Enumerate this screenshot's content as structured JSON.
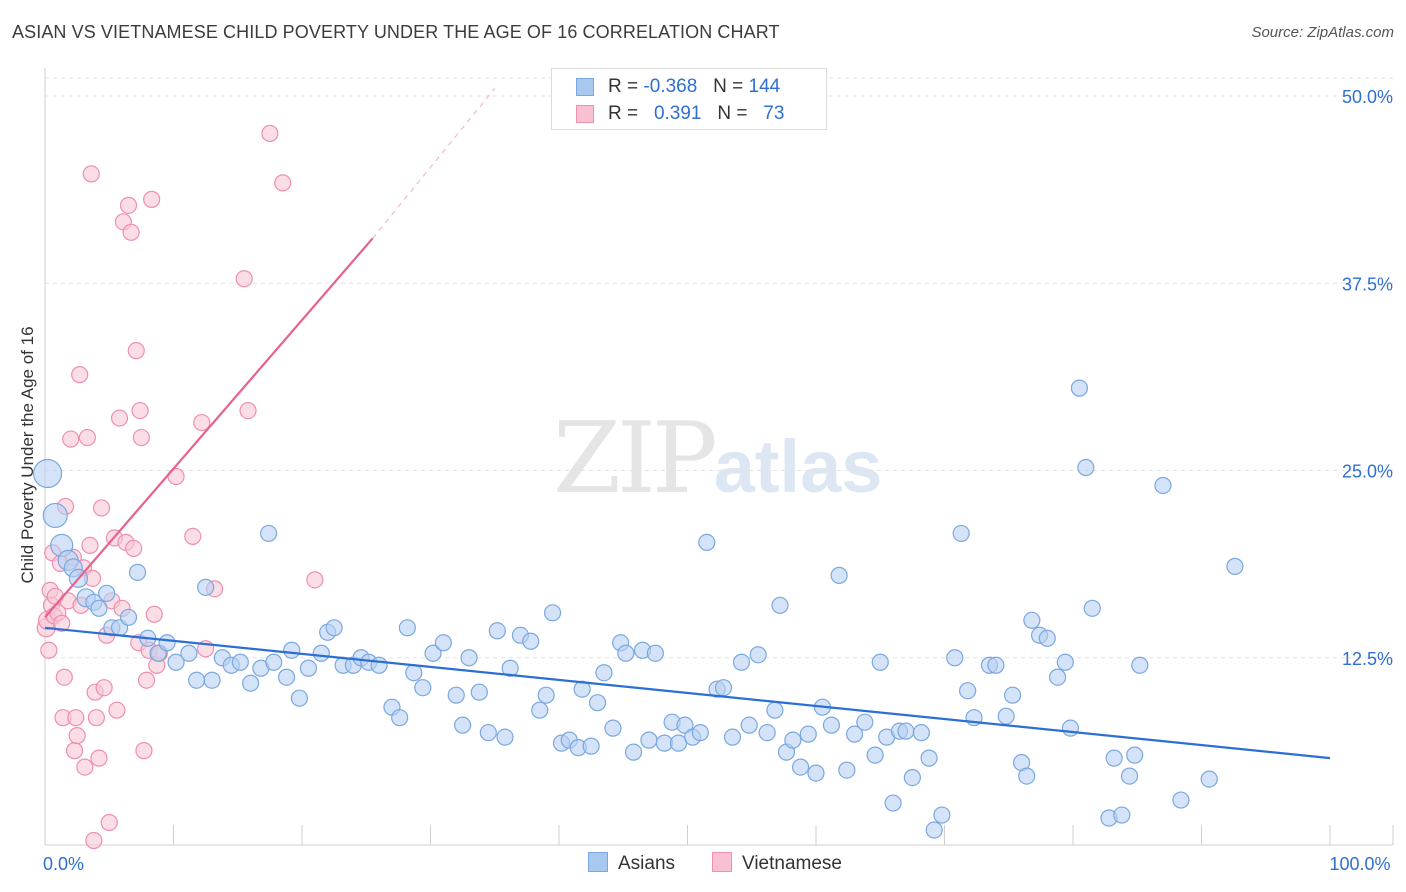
{
  "title": "ASIAN VS VIETNAMESE CHILD POVERTY UNDER THE AGE OF 16 CORRELATION CHART",
  "source": "Source: ZipAtlas.com",
  "watermark": {
    "zip": "ZIP",
    "atlas": "atlas"
  },
  "legend": {
    "rows": [
      {
        "r_label": "R =",
        "r_value": "-0.368",
        "n_label": "N =",
        "n_value": "144",
        "color": "#a8c8f0",
        "border": "#7aa8e0"
      },
      {
        "r_label": "R =",
        "r_value": "0.391",
        "n_label": "N =",
        "n_value": "73",
        "color": "#f8c0d0",
        "border": "#f090b0"
      }
    ]
  },
  "colors": {
    "asian_fill": "#b7d0f2",
    "asian_stroke": "#7aa8e0",
    "asian_line": "#2b6fd4",
    "viet_fill": "#f8c6d6",
    "viet_stroke": "#ee8fb0",
    "viet_line": "#e8608f",
    "axis_label": "#2f6fd1",
    "grid": "#e3e3e3"
  },
  "chart_data": {
    "type": "scatter",
    "xlabel": "",
    "ylabel": "Child Poverty Under the Age of 16",
    "xlim": [
      0,
      100
    ],
    "ylim": [
      0,
      50
    ],
    "x_tick_labels": {
      "0": "0.0%",
      "100": "100.0%"
    },
    "y_tick_labels": {
      "12.5": "12.5%",
      "25": "25.0%",
      "37.5": "37.5%",
      "50": "50.0%"
    },
    "legend_position": "bottom-center",
    "series": [
      {
        "name": "Asians",
        "trend": {
          "x": [
            0,
            100
          ],
          "y": [
            14.5,
            5.8
          ],
          "dashed_extension": false
        },
        "points": [
          [
            0.2,
            24.8,
            14
          ],
          [
            0.8,
            22.0,
            12
          ],
          [
            1.3,
            20.0,
            11
          ],
          [
            1.8,
            19.0,
            10
          ],
          [
            2.2,
            18.5,
            9
          ],
          [
            2.6,
            17.8,
            9
          ],
          [
            3.2,
            16.5,
            9
          ],
          [
            3.8,
            16.2,
            8
          ],
          [
            4.2,
            15.8,
            8
          ],
          [
            4.8,
            16.8,
            8
          ],
          [
            5.2,
            14.5,
            8
          ],
          [
            5.8,
            14.5,
            8
          ],
          [
            6.5,
            15.2,
            8
          ],
          [
            7.2,
            18.2,
            8
          ],
          [
            8.0,
            13.8,
            8
          ],
          [
            8.8,
            12.8,
            8
          ],
          [
            9.5,
            13.5,
            8
          ],
          [
            10.2,
            12.2,
            8
          ],
          [
            11.2,
            12.8,
            8
          ],
          [
            11.8,
            11.0,
            8
          ],
          [
            12.5,
            17.2,
            8
          ],
          [
            13.0,
            11.0,
            8
          ],
          [
            13.8,
            12.5,
            8
          ],
          [
            14.5,
            12.0,
            8
          ],
          [
            15.2,
            12.2,
            8
          ],
          [
            16.0,
            10.8,
            8
          ],
          [
            16.8,
            11.8,
            8
          ],
          [
            17.4,
            20.8,
            8
          ],
          [
            17.8,
            12.2,
            8
          ],
          [
            18.8,
            11.2,
            8
          ],
          [
            19.2,
            13.0,
            8
          ],
          [
            19.8,
            9.8,
            8
          ],
          [
            20.5,
            11.8,
            8
          ],
          [
            21.5,
            12.8,
            8
          ],
          [
            22.0,
            14.2,
            8
          ],
          [
            22.5,
            14.5,
            8
          ],
          [
            23.2,
            12.0,
            8
          ],
          [
            24.0,
            12.0,
            8
          ],
          [
            24.6,
            12.5,
            8
          ],
          [
            25.2,
            12.2,
            8
          ],
          [
            26.0,
            12.0,
            8
          ],
          [
            27.0,
            9.2,
            8
          ],
          [
            27.6,
            8.5,
            8
          ],
          [
            28.2,
            14.5,
            8
          ],
          [
            28.7,
            11.5,
            8
          ],
          [
            29.4,
            10.5,
            8
          ],
          [
            30.2,
            12.8,
            8
          ],
          [
            31.0,
            13.5,
            8
          ],
          [
            32.0,
            10.0,
            8
          ],
          [
            32.5,
            8.0,
            8
          ],
          [
            33.0,
            12.5,
            8
          ],
          [
            33.8,
            10.2,
            8
          ],
          [
            34.5,
            7.5,
            8
          ],
          [
            35.2,
            14.3,
            8
          ],
          [
            35.8,
            7.2,
            8
          ],
          [
            36.2,
            11.8,
            8
          ],
          [
            37.0,
            14.0,
            8
          ],
          [
            37.8,
            13.6,
            8
          ],
          [
            38.5,
            9.0,
            8
          ],
          [
            39.0,
            10.0,
            8
          ],
          [
            39.5,
            15.5,
            8
          ],
          [
            40.2,
            6.8,
            8
          ],
          [
            40.8,
            7.0,
            8
          ],
          [
            41.5,
            6.5,
            8
          ],
          [
            41.8,
            10.4,
            8
          ],
          [
            42.5,
            6.6,
            8
          ],
          [
            43.0,
            9.5,
            8
          ],
          [
            43.5,
            11.5,
            8
          ],
          [
            44.2,
            7.8,
            8
          ],
          [
            44.8,
            13.5,
            8
          ],
          [
            45.2,
            12.8,
            8
          ],
          [
            45.8,
            6.2,
            8
          ],
          [
            46.5,
            13.0,
            8
          ],
          [
            47.0,
            7.0,
            8
          ],
          [
            47.5,
            12.8,
            8
          ],
          [
            48.2,
            6.8,
            8
          ],
          [
            48.8,
            8.2,
            8
          ],
          [
            49.3,
            6.8,
            8
          ],
          [
            49.8,
            8.0,
            8
          ],
          [
            50.4,
            7.2,
            8
          ],
          [
            51.0,
            7.5,
            8
          ],
          [
            51.5,
            20.2,
            8
          ],
          [
            52.3,
            10.4,
            8
          ],
          [
            52.8,
            10.5,
            8
          ],
          [
            53.5,
            7.2,
            8
          ],
          [
            54.2,
            12.2,
            8
          ],
          [
            54.8,
            8.0,
            8
          ],
          [
            55.5,
            12.7,
            8
          ],
          [
            56.2,
            7.5,
            8
          ],
          [
            56.8,
            9.0,
            8
          ],
          [
            57.2,
            16.0,
            8
          ],
          [
            57.7,
            6.2,
            8
          ],
          [
            58.2,
            7.0,
            8
          ],
          [
            58.8,
            5.2,
            8
          ],
          [
            59.4,
            7.4,
            8
          ],
          [
            60.0,
            4.8,
            8
          ],
          [
            60.5,
            9.2,
            8
          ],
          [
            61.2,
            8.0,
            8
          ],
          [
            61.8,
            18.0,
            8
          ],
          [
            62.4,
            5.0,
            8
          ],
          [
            63.0,
            7.4,
            8
          ],
          [
            63.8,
            8.2,
            8
          ],
          [
            64.6,
            6.0,
            8
          ],
          [
            65.0,
            12.2,
            8
          ],
          [
            65.5,
            7.2,
            8
          ],
          [
            66.0,
            2.8,
            8
          ],
          [
            66.5,
            7.6,
            8
          ],
          [
            67.0,
            7.6,
            8
          ],
          [
            67.5,
            4.5,
            8
          ],
          [
            68.2,
            7.5,
            8
          ],
          [
            68.8,
            5.8,
            8
          ],
          [
            69.2,
            1.0,
            8
          ],
          [
            69.8,
            2.0,
            8
          ],
          [
            70.8,
            12.5,
            8
          ],
          [
            71.3,
            20.8,
            8
          ],
          [
            71.8,
            10.3,
            8
          ],
          [
            72.3,
            8.5,
            8
          ],
          [
            73.5,
            12.0,
            8
          ],
          [
            74.0,
            12.0,
            8
          ],
          [
            74.8,
            8.6,
            8
          ],
          [
            75.3,
            10.0,
            8
          ],
          [
            76.0,
            5.5,
            8
          ],
          [
            76.4,
            4.6,
            8
          ],
          [
            76.8,
            15.0,
            8
          ],
          [
            77.4,
            14.0,
            8
          ],
          [
            78.0,
            13.8,
            8
          ],
          [
            78.8,
            11.2,
            8
          ],
          [
            79.4,
            12.2,
            8
          ],
          [
            79.8,
            7.8,
            8
          ],
          [
            80.5,
            30.5,
            8
          ],
          [
            81.0,
            25.2,
            8
          ],
          [
            81.5,
            15.8,
            8
          ],
          [
            82.8,
            1.8,
            8
          ],
          [
            83.2,
            5.8,
            8
          ],
          [
            83.8,
            2.0,
            8
          ],
          [
            84.4,
            4.6,
            8
          ],
          [
            84.8,
            6.0,
            8
          ],
          [
            85.2,
            12.0,
            8
          ],
          [
            87.0,
            24.0,
            8
          ],
          [
            88.4,
            3.0,
            8
          ],
          [
            90.6,
            4.4,
            8
          ],
          [
            92.6,
            18.6,
            8
          ]
        ]
      },
      {
        "name": "Vietnamese",
        "trend": {
          "x": [
            0,
            25.5
          ],
          "y": [
            15.2,
            40.5
          ],
          "dashed_x": [
            25.5,
            35.0
          ],
          "dashed_y": [
            40.5,
            50.5
          ]
        },
        "points": [
          [
            0.1,
            14.5,
            9
          ],
          [
            0.2,
            15.0,
            9
          ],
          [
            0.3,
            13.0,
            8
          ],
          [
            0.4,
            17.0,
            8
          ],
          [
            0.5,
            16.0,
            8
          ],
          [
            0.6,
            19.5,
            8
          ],
          [
            0.7,
            15.3,
            8
          ],
          [
            0.8,
            16.6,
            8
          ],
          [
            1.0,
            15.5,
            8
          ],
          [
            1.2,
            18.8,
            8
          ],
          [
            1.3,
            14.8,
            8
          ],
          [
            1.4,
            8.5,
            8
          ],
          [
            1.5,
            11.2,
            8
          ],
          [
            1.6,
            22.6,
            8
          ],
          [
            1.8,
            16.3,
            8
          ],
          [
            2.0,
            27.1,
            8
          ],
          [
            2.2,
            19.2,
            8
          ],
          [
            2.3,
            6.3,
            8
          ],
          [
            2.4,
            8.5,
            8
          ],
          [
            2.5,
            7.3,
            8
          ],
          [
            2.7,
            31.4,
            8
          ],
          [
            2.8,
            16.0,
            8
          ],
          [
            3.0,
            18.5,
            8
          ],
          [
            3.1,
            5.2,
            8
          ],
          [
            3.3,
            27.2,
            8
          ],
          [
            3.5,
            20.0,
            8
          ],
          [
            3.6,
            44.8,
            8
          ],
          [
            3.7,
            17.8,
            8
          ],
          [
            3.8,
            0.3,
            8
          ],
          [
            3.9,
            10.2,
            8
          ],
          [
            4.0,
            8.5,
            8
          ],
          [
            4.2,
            5.8,
            8
          ],
          [
            4.4,
            22.5,
            8
          ],
          [
            4.6,
            10.5,
            8
          ],
          [
            4.8,
            14.0,
            8
          ],
          [
            5.0,
            1.5,
            8
          ],
          [
            5.2,
            16.3,
            8
          ],
          [
            5.4,
            20.5,
            8
          ],
          [
            5.6,
            9.0,
            8
          ],
          [
            5.8,
            28.5,
            8
          ],
          [
            6.0,
            15.8,
            8
          ],
          [
            6.1,
            41.6,
            8
          ],
          [
            6.3,
            20.2,
            8
          ],
          [
            6.5,
            42.7,
            8
          ],
          [
            6.7,
            40.9,
            8
          ],
          [
            6.9,
            19.8,
            8
          ],
          [
            7.1,
            33.0,
            8
          ],
          [
            7.3,
            13.5,
            8
          ],
          [
            7.4,
            29.0,
            8
          ],
          [
            7.5,
            27.2,
            8
          ],
          [
            7.7,
            6.3,
            8
          ],
          [
            7.9,
            11.0,
            8
          ],
          [
            8.1,
            13.0,
            8
          ],
          [
            8.3,
            43.1,
            8
          ],
          [
            8.5,
            15.4,
            8
          ],
          [
            8.7,
            12.0,
            8
          ],
          [
            8.9,
            12.8,
            8
          ],
          [
            10.2,
            24.6,
            8
          ],
          [
            11.5,
            20.6,
            8
          ],
          [
            12.2,
            28.2,
            8
          ],
          [
            12.5,
            13.1,
            8
          ],
          [
            13.2,
            17.1,
            8
          ],
          [
            15.5,
            37.8,
            8
          ],
          [
            15.8,
            29.0,
            8
          ],
          [
            17.5,
            47.5,
            8
          ],
          [
            18.5,
            44.2,
            8
          ],
          [
            21.0,
            17.7,
            8
          ]
        ]
      }
    ]
  }
}
